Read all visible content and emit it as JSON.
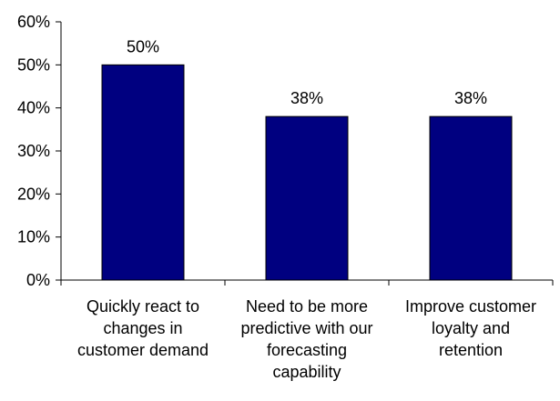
{
  "chart_data": {
    "type": "bar",
    "categories": [
      [
        "Quickly react to",
        "changes in",
        "customer demand"
      ],
      [
        "Need to be more",
        "predictive with our",
        "forecasting",
        "capability"
      ],
      [
        "Improve customer",
        "loyalty and",
        "retention"
      ]
    ],
    "values": [
      0.5,
      0.38,
      0.38
    ],
    "data_labels": [
      "50%",
      "38%",
      "38%"
    ],
    "y_ticks": [
      {
        "value": 0.0,
        "label": "0%"
      },
      {
        "value": 0.1,
        "label": "10%"
      },
      {
        "value": 0.2,
        "label": "20%"
      },
      {
        "value": 0.3,
        "label": "30%"
      },
      {
        "value": 0.4,
        "label": "40%"
      },
      {
        "value": 0.5,
        "label": "50%"
      },
      {
        "value": 0.6,
        "label": "60%"
      }
    ],
    "ylim": [
      0,
      0.6
    ],
    "grid": false,
    "legend": "none",
    "title": "",
    "xlabel": "",
    "ylabel": "",
    "colors": {
      "bar_fill": "#000080",
      "bar_stroke": "#000000",
      "axis": "#000000"
    }
  }
}
